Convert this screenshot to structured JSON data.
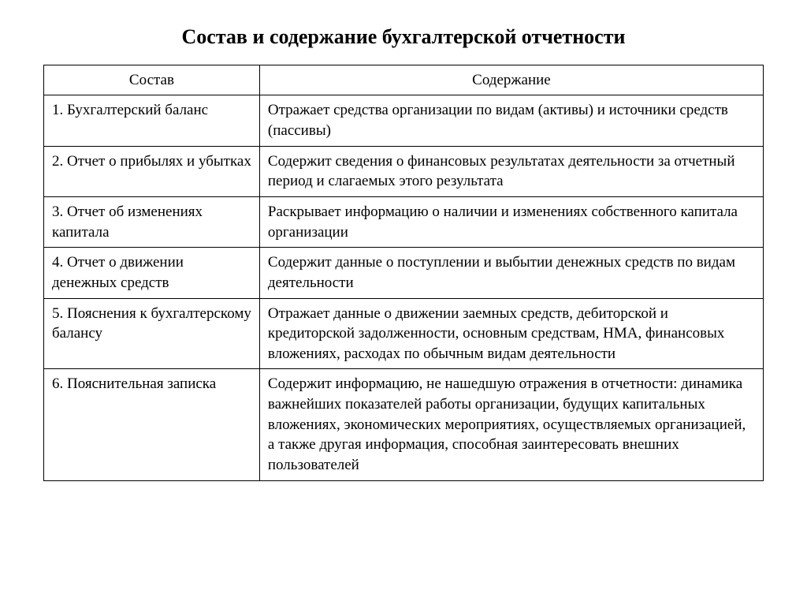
{
  "title": "Состав и содержание бухгалтерской отчетности",
  "table": {
    "columns": [
      "Состав",
      "Содержание"
    ],
    "col_widths": [
      "30%",
      "70%"
    ],
    "border_color": "#000000",
    "font_family": "Times New Roman",
    "header_fontsize": 19,
    "cell_fontsize": 19,
    "rows": [
      {
        "c0": "1. Бухгалтерский баланс",
        "c1": "Отражает средства организации по видам (активы) и источники средств (пассивы)"
      },
      {
        "c0": "2. Отчет о прибылях и убытках",
        "c1": "Содержит сведения о финансовых результатах деятельности за отчетный период и слагаемых этого результата"
      },
      {
        "c0": "3. Отчет об изменениях капитала",
        "c1": "Раскрывает информацию о наличии и изменениях собственного капитала организации"
      },
      {
        "c0": "4. Отчет о движении денежных средств",
        "c1": "Содержит данные о поступлении и выбытии денежных средств по видам деятельности"
      },
      {
        "c0": "5. Пояснения к бухгалтерскому балансу",
        "c1": "Отражает данные о движении заемных средств, дебиторской и кредиторской задолженности, основным средствам, НМА, финансовых вложениях, расходах по обычным видам деятельности"
      },
      {
        "c0": "6. Пояснительная записка",
        "c1": "Содержит информацию, не нашедшую отражения в отчетности: динамика важнейших показателей работы организации, будущих капитальных вложениях, экономических мероприятиях, осуществляемых организацией, а также другая информация, способная заинтересовать внешних пользователей"
      }
    ]
  }
}
